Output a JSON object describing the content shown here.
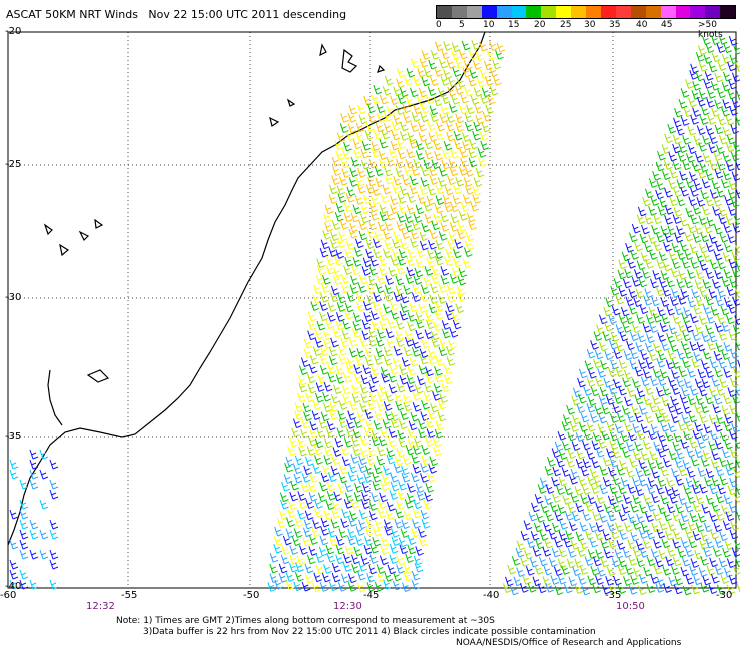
{
  "title": "ASCAT 50KM NRT Winds   Nov 22 15:00 UTC 2011 descending",
  "legend": {
    "colors": [
      "#505050",
      "#7a7a7a",
      "#a0a0a0",
      "#1010ff",
      "#2aa0ff",
      "#00c8ff",
      "#00c000",
      "#a6e000",
      "#ffff00",
      "#ffc000",
      "#ff8000",
      "#ff2020",
      "#ff3c3c",
      "#b45000",
      "#d87000",
      "#ff60ff",
      "#e000e0",
      "#a000e0",
      "#7000c0",
      "#200020"
    ],
    "labels": [
      "0",
      "5",
      "10",
      "15",
      "20",
      "25",
      "30",
      "35",
      "40",
      "45",
      ">50 knots"
    ]
  },
  "axes": {
    "lat_labels": [
      "-20",
      "-25",
      "-30",
      "-35",
      "-40"
    ],
    "lon_labels": [
      "-60",
      "-55",
      "-50",
      "-45",
      "-40",
      "-35",
      "-30"
    ]
  },
  "times": [
    "12:32",
    "12:30",
    "10:50"
  ],
  "notes": {
    "line1": "Note: 1) Times are GMT 2)Times along bottom correspond to measurement at ~30S",
    "line2": "3)Data buffer is 22 hrs from Nov 22 15:00 UTC 2011 4) Black circles indicate possible contamination",
    "line3": "NOAA/NESDIS/Office of Research and Applications"
  }
}
